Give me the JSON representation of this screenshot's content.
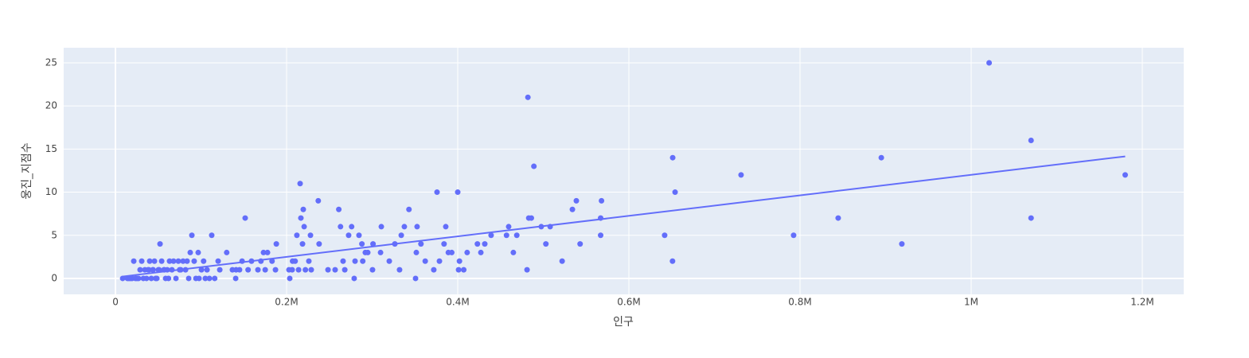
{
  "chart_data": {
    "type": "scatter",
    "xlabel": "인구",
    "ylabel": "웅진_지점수",
    "xlim": [
      -60500,
      1248400
    ],
    "ylim": [
      -1.85,
      26.75
    ],
    "xticks": [
      0,
      {
        "value": 200000,
        "label": "0.2M"
      },
      {
        "value": 400000,
        "label": "0.4M"
      },
      {
        "value": 600000,
        "label": "0.6M"
      },
      {
        "value": 800000,
        "label": "0.8M"
      },
      {
        "value": 1000000,
        "label": "1M"
      },
      {
        "value": 1200000,
        "label": "1.2M"
      }
    ],
    "yticks": [
      0,
      5,
      10,
      15,
      20,
      25
    ],
    "grid": true,
    "series": [
      {
        "mode": "markers",
        "color": "#636efa",
        "x": [
          1021000,
          482000,
          1070000,
          1070000,
          1180000,
          895000,
          919000,
          844600,
          792500,
          731100,
          651200,
          654000,
          651000,
          641800,
          568000,
          567000,
          567000,
          538600,
          534000,
          543000,
          522000,
          508000,
          503000,
          497600,
          489000,
          486000,
          483000,
          481000,
          469000,
          465000,
          459500,
          457000,
          439000,
          431600,
          427000,
          423000,
          411000,
          407000,
          402000,
          401000,
          400000,
          393000,
          389000,
          386000,
          384000,
          378600,
          375800,
          372000,
          362000,
          357000,
          352500,
          351600,
          350700,
          343000,
          337600,
          334000,
          332000,
          326500,
          320000,
          310700,
          309800,
          301000,
          300400,
          294900,
          292000,
          289000,
          288000,
          284600,
          280000,
          279000,
          276000,
          272500,
          268000,
          266000,
          263000,
          261000,
          256700,
          248400,
          238000,
          237000,
          228800,
          227900,
          226000,
          222000,
          220500,
          219500,
          218600,
          216700,
          215800,
          214000,
          212000,
          210000,
          206500,
          207000,
          203700,
          202800,
          188000,
          187000,
          183000,
          177700,
          175000,
          173000,
          170000,
          166500,
          159000,
          155000,
          151600,
          148000,
          145000,
          141000,
          140500,
          136700,
          130000,
          121900,
          120000,
          116000,
          112500,
          109800,
          107000,
          105000,
          103000,
          100500,
          97700,
          96700,
          94000,
          92000,
          89300,
          87400,
          85600,
          83700,
          81900,
          79000,
          76300,
          73500,
          70700,
          67900,
          66000,
          63200,
          60500,
          58600,
          56700,
          54000,
          52100,
          50200,
          48400,
          45600,
          43700,
          41900,
          40000,
          38100,
          36300,
          34400,
          32600,
          30700,
          28800,
          27000,
          25100,
          23300,
          21400,
          19500,
          17700,
          15800,
          14000,
          8400,
          39000,
          51000,
          57000,
          75000,
          44000,
          47000,
          62000
        ],
        "values": [
          25,
          21,
          16,
          7,
          12,
          14,
          4,
          7,
          5,
          12,
          14,
          10,
          2,
          5,
          9,
          7,
          5,
          9,
          8,
          4,
          2,
          6,
          4,
          6,
          13,
          7,
          7,
          1,
          5,
          3,
          6,
          5,
          5,
          4,
          3,
          4,
          3,
          1,
          2,
          1,
          10,
          3,
          3,
          6,
          4,
          2,
          10,
          1,
          2,
          4,
          6,
          3,
          0,
          8,
          6,
          5,
          1,
          4,
          2,
          6,
          3,
          4,
          1,
          3,
          3,
          2,
          4,
          5,
          2,
          0,
          6,
          5,
          1,
          2,
          6,
          8,
          1,
          1,
          4,
          9,
          1,
          5,
          2,
          1,
          6,
          8,
          4,
          7,
          11,
          1,
          5,
          2,
          1,
          2,
          0,
          1,
          4,
          1,
          2,
          3,
          1,
          3,
          2,
          1,
          2,
          1,
          7,
          2,
          1,
          1,
          0,
          1,
          3,
          1,
          2,
          0,
          5,
          0,
          1,
          0,
          2,
          1,
          0,
          3,
          0,
          2,
          5,
          3,
          0,
          2,
          1,
          2,
          1,
          2,
          0,
          2,
          1,
          2,
          1,
          0,
          1,
          2,
          4,
          1,
          0,
          2,
          1,
          0,
          2,
          1,
          0,
          1,
          0,
          2,
          1,
          0,
          0,
          0,
          2,
          0,
          0,
          0,
          0,
          0,
          1,
          1,
          1,
          1,
          1,
          0,
          0
        ]
      },
      {
        "mode": "lines",
        "color": "#636efa",
        "x": [
          8400,
          1180000
        ],
        "values": [
          0.22,
          14.15
        ]
      }
    ]
  }
}
